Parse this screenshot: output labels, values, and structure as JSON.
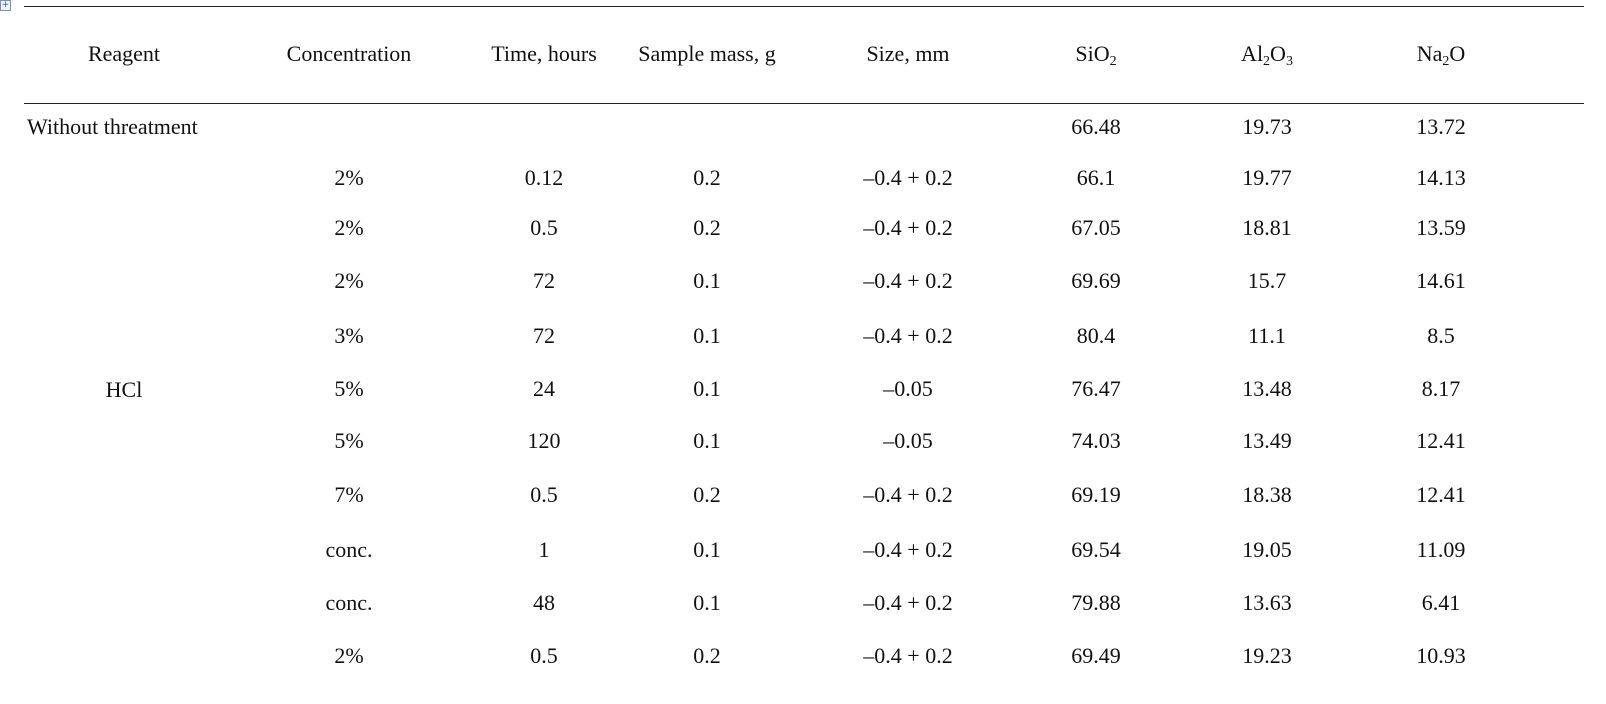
{
  "table": {
    "headers": {
      "reagent": "Reagent",
      "concentration": "Concentration",
      "time": "Time, hours",
      "mass": "Sample mass, g",
      "size": "Size, mm",
      "sio2": {
        "main": "SiO",
        "sub": "2"
      },
      "al2o3": {
        "a": "Al",
        "sub1": "2",
        "b": "O",
        "sub2": "3"
      },
      "na2o": {
        "a": "Na",
        "sub": "2",
        "b": "O"
      }
    },
    "untreated": {
      "label": "Without threatment",
      "sio2": "66.48",
      "al2o3": "19.73",
      "na2o": "13.72"
    },
    "reagent_group": "HCl",
    "rows": [
      {
        "concentration": "2%",
        "time": "0.12",
        "mass": "0.2",
        "size": "–0.4 + 0.2",
        "sio2": "66.1",
        "al2o3": "19.77",
        "na2o": "14.13"
      },
      {
        "concentration": "2%",
        "time": "0.5",
        "mass": "0.2",
        "size": "–0.4 + 0.2",
        "sio2": "67.05",
        "al2o3": "18.81",
        "na2o": "13.59"
      },
      {
        "concentration": "2%",
        "time": "72",
        "mass": "0.1",
        "size": "–0.4 + 0.2",
        "sio2": "69.69",
        "al2o3": "15.7",
        "na2o": "14.61"
      },
      {
        "concentration": "3%",
        "time": "72",
        "mass": "0.1",
        "size": "–0.4 + 0.2",
        "sio2": "80.4",
        "al2o3": "11.1",
        "na2o": "8.5"
      },
      {
        "concentration": "5%",
        "time": "24",
        "mass": "0.1",
        "size": "–0.05",
        "sio2": "76.47",
        "al2o3": "13.48",
        "na2o": "8.17"
      },
      {
        "concentration": "5%",
        "time": "120",
        "mass": "0.1",
        "size": "–0.05",
        "sio2": "74.03",
        "al2o3": "13.49",
        "na2o": "12.41"
      },
      {
        "concentration": "7%",
        "time": "0.5",
        "mass": "0.2",
        "size": "–0.4 + 0.2",
        "sio2": "69.19",
        "al2o3": "18.38",
        "na2o": "12.41"
      },
      {
        "concentration": "conc.",
        "time": "1",
        "mass": "0.1",
        "size": "–0.4 + 0.2",
        "sio2": "69.54",
        "al2o3": "19.05",
        "na2o": "11.09"
      },
      {
        "concentration": "conc.",
        "time": "48",
        "mass": "0.1",
        "size": "–0.4 + 0.2",
        "sio2": "79.88",
        "al2o3": "13.63",
        "na2o": "6.41"
      },
      {
        "concentration": "2%",
        "time": "0.5",
        "mass": "0.2",
        "size": "–0.4 + 0.2",
        "sio2": "69.49",
        "al2o3": "19.23",
        "na2o": "10.93"
      }
    ]
  }
}
